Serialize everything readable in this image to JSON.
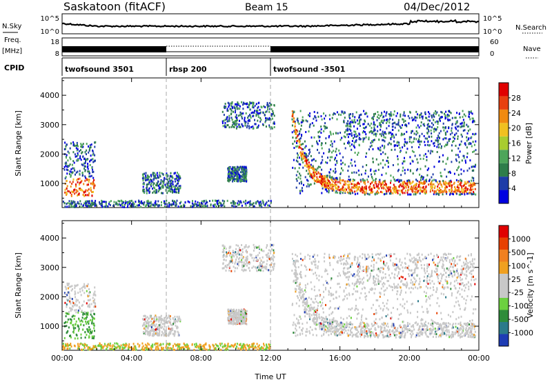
{
  "header": {
    "station": "Saskatoon (fitACF)",
    "beam": "Beam 15",
    "date": "04/Dec/2012"
  },
  "noise_panel": {
    "left_label": "N.Sky",
    "right_label": "N.Search",
    "left_ticks": [
      "10^5",
      "10^0"
    ],
    "right_ticks": [
      "10^5",
      "10^0"
    ]
  },
  "freq_panel": {
    "left_label_1": "Freq.",
    "left_label_2": "[MHz]",
    "right_label": "Nave",
    "left_ticks": [
      "18",
      "8"
    ],
    "right_ticks": [
      "60",
      "0"
    ]
  },
  "cpid": {
    "label": "CPID",
    "segments": [
      {
        "name": "twofsound 3501",
        "start_hour": 0,
        "end_hour": 6
      },
      {
        "name": "rbsp 200",
        "start_hour": 6,
        "end_hour": 12
      },
      {
        "name": "twofsound -3501",
        "start_hour": 12,
        "end_hour": 24
      }
    ]
  },
  "chart_data": [
    {
      "type": "heatmap",
      "name": "power",
      "ylabel": "Slant Range [km]",
      "yticks": [
        "1000",
        "2000",
        "3000",
        "4000"
      ],
      "ylim": [
        180,
        4590
      ],
      "xlim": [
        0,
        24
      ],
      "colorbar": {
        "label": "Power [dB]",
        "ticks": [
          "4",
          "8",
          "12",
          "16",
          "20",
          "24",
          "28"
        ],
        "colors": [
          "#0000e0",
          "#1e3ca8",
          "#2e7d4a",
          "#4da55a",
          "#a8cc30",
          "#f0c020",
          "#f08a10",
          "#e84010",
          "#e00000"
        ]
      },
      "scatter_regions": [
        {
          "t": [
            0.1,
            1.9
          ],
          "r": [
            600,
            2500
          ],
          "level": "mixed-high"
        },
        {
          "t": [
            4.6,
            6.8
          ],
          "r": [
            700,
            1400
          ],
          "level": "mixed-low"
        },
        {
          "t": [
            9.5,
            10.6
          ],
          "r": [
            1100,
            1600
          ],
          "level": "mixed-low"
        },
        {
          "t": [
            9.2,
            12.2
          ],
          "r": [
            2900,
            3800
          ],
          "level": "mixed-low"
        },
        {
          "t": [
            13.2,
            23.8
          ],
          "r": [
            700,
            3500
          ],
          "level": "arc-high"
        },
        {
          "t": [
            0,
            12
          ],
          "r": [
            180,
            450
          ],
          "level": "ground"
        }
      ]
    },
    {
      "type": "heatmap",
      "name": "velocity",
      "ylabel": "Slant Range [km]",
      "yticks": [
        "1000",
        "2000",
        "3000",
        "4000"
      ],
      "ylim": [
        180,
        4590
      ],
      "xlim": [
        0,
        24
      ],
      "xticks": [
        "00:00",
        "04:00",
        "08:00",
        "12:00",
        "16:00",
        "20:00",
        "00:00"
      ],
      "xlabel": "Time UT",
      "colorbar": {
        "label": "Velocity [m s^-1]",
        "ticks": [
          "1000",
          "500",
          "100",
          "25",
          "-25",
          "-100",
          "-500",
          "-1000"
        ],
        "colors": [
          "#1e3cb4",
          "#2c7a8a",
          "#2e8c3a",
          "#6cd040",
          "#c8c8c8",
          "#c8c8c8",
          "#f0a020",
          "#f08020",
          "#e84000",
          "#e00000"
        ]
      }
    }
  ]
}
